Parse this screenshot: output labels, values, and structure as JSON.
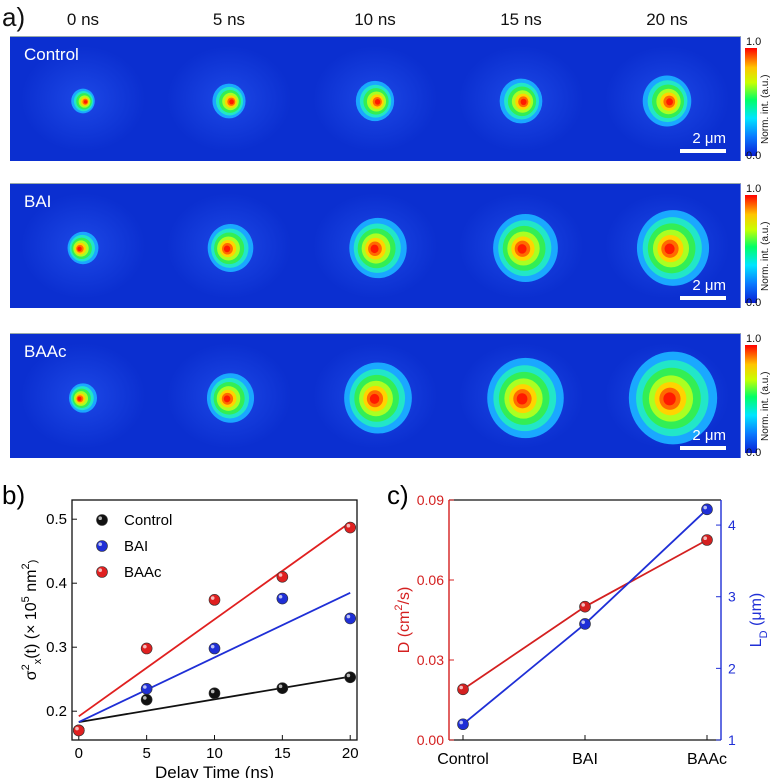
{
  "panel_a": {
    "letter": "a)",
    "time_labels": [
      "0 ns",
      "5 ns",
      "10 ns",
      "15 ns",
      "20 ns"
    ],
    "rows": [
      {
        "name": "Control",
        "spot_radius_um": [
          0.32,
          0.45,
          0.52,
          0.58,
          0.66
        ],
        "scale_label": "2 μm"
      },
      {
        "name": "BAI",
        "spot_radius_um": [
          0.42,
          0.62,
          0.78,
          0.88,
          0.98
        ],
        "scale_label": "2 μm"
      },
      {
        "name": "BAAc",
        "spot_radius_um": [
          0.38,
          0.64,
          0.92,
          1.04,
          1.2
        ],
        "scale_label": "2 μm"
      }
    ],
    "colorbar": {
      "max": "1.0",
      "min": "0.0",
      "title": "Norm. int. (a.u.)"
    }
  },
  "chart_data": [
    {
      "type": "scatter",
      "panel": "b)",
      "xlabel": "Delay Time (ns)",
      "ylabel": "σ²x(t) (× 10⁵ nm²)",
      "ylabel_parts": {
        "sigma": "σ",
        "sup2": "2",
        "subx": "x",
        "mid": "(t) (× 10",
        "sup5": "5",
        "unit": " nm",
        "sup2b": "2",
        "end": ")"
      },
      "xlim": [
        -0.5,
        20.5
      ],
      "ylim": [
        0.155,
        0.53
      ],
      "xticks": [
        0,
        5,
        10,
        15,
        20
      ],
      "yticks": [
        0.2,
        0.3,
        0.4,
        0.5
      ],
      "ytick_labels": [
        "0.2",
        "0.3",
        "0.4",
        "0.5"
      ],
      "xtick_labels": [
        "0",
        "5",
        "10",
        "15",
        "20"
      ],
      "series": [
        {
          "name": "Control",
          "color": "#111111",
          "x": [
            0,
            5,
            10,
            15,
            20
          ],
          "y": [
            0.17,
            0.218,
            0.228,
            0.236,
            0.253
          ],
          "fit": [
            0.183,
            0.254
          ]
        },
        {
          "name": "BAI",
          "color": "#1f2fd6",
          "x": [
            0,
            5,
            10,
            15,
            20
          ],
          "y": [
            0.17,
            0.235,
            0.298,
            0.376,
            0.345
          ],
          "fit": [
            0.183,
            0.385
          ]
        },
        {
          "name": "BAAc",
          "color": "#e02020",
          "x": [
            0,
            5,
            10,
            15,
            20
          ],
          "y": [
            0.17,
            0.298,
            0.374,
            0.41,
            0.487
          ],
          "fit": [
            0.192,
            0.495
          ]
        }
      ]
    },
    {
      "type": "line",
      "panel": "c)",
      "categories": [
        "Control",
        "BAI",
        "BAAc"
      ],
      "left_axis": {
        "label": "D (cm²/s)",
        "label_main": "D (cm",
        "label_sup": "2",
        "label_end": "/s)",
        "color": "#d42020",
        "ylim": [
          0.0,
          0.09
        ],
        "ticks": [
          "0.00",
          "0.03",
          "0.06",
          "0.09"
        ],
        "values": [
          0.019,
          0.05,
          0.075
        ]
      },
      "right_axis": {
        "label": "LD (μm)",
        "label_main": "L",
        "label_sub": "D",
        "label_end": " (μm)",
        "color": "#1f2fd6",
        "ylim": [
          1.0,
          4.35
        ],
        "ticks": [
          "1",
          "2",
          "3",
          "4"
        ],
        "values": [
          1.22,
          2.62,
          4.22
        ]
      }
    }
  ]
}
